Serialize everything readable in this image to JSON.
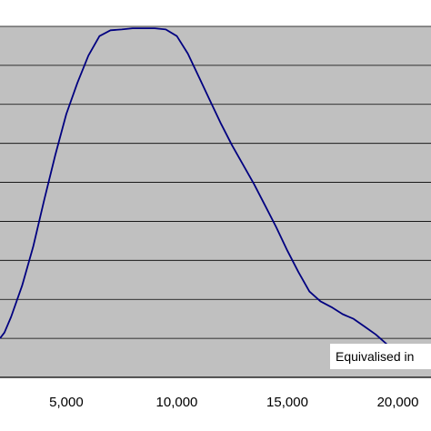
{
  "chart_data": {
    "type": "line",
    "title": "",
    "xlabel": "",
    "ylabel": "",
    "xlim": [
      2000,
      21500
    ],
    "x_ticks": [
      5000,
      10000,
      15000,
      20000
    ],
    "x_tick_labels": [
      "5,000",
      "10,000",
      "15,000",
      "20,000"
    ],
    "y_gridlines": 9,
    "grid": true,
    "legend": "none",
    "annotation": "Equivalised in",
    "colors": {
      "plot_background": "#c0c0c0",
      "gridline": "#000000",
      "line": "#000080"
    },
    "series": [
      {
        "x": [
          2000,
          2200,
          2500,
          3000,
          3500,
          4000,
          4500,
          5000,
          5500,
          6000,
          6500,
          7000,
          7500,
          8000,
          8500,
          9000,
          9500,
          10000,
          10500,
          11000,
          11500,
          12000,
          12500,
          13000,
          13500,
          14000,
          14500,
          15000,
          15500,
          16000,
          16500,
          17000,
          17500,
          18000,
          18500,
          19000,
          19500,
          20000,
          20500
        ],
        "y": [
          0.0,
          0.15,
          0.55,
          1.35,
          2.35,
          3.55,
          4.7,
          5.75,
          6.55,
          7.25,
          7.75,
          7.9,
          7.92,
          7.95,
          7.95,
          7.95,
          7.92,
          7.75,
          7.3,
          6.7,
          6.1,
          5.5,
          4.95,
          4.45,
          3.95,
          3.4,
          2.85,
          2.25,
          1.7,
          1.2,
          0.95,
          0.8,
          0.62,
          0.5,
          0.3,
          0.1,
          -0.15,
          -0.4,
          -0.6
        ]
      }
    ]
  }
}
